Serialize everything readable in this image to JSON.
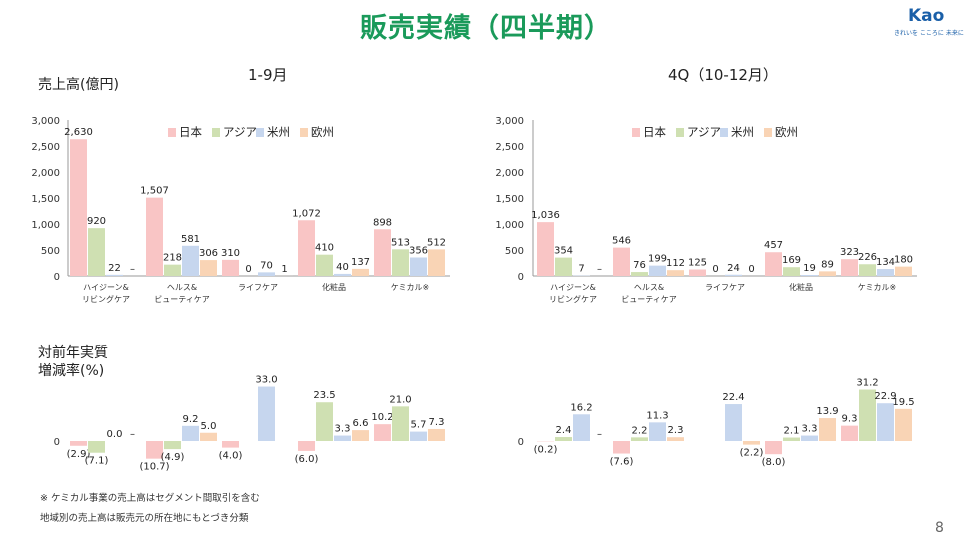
{
  "header": {
    "title": "販売実績（四半期）",
    "logo_text": "Kao",
    "logo_tagline": "きれいを こころに 未来に",
    "page_number": "8"
  },
  "labels": {
    "sales_unit": "売上高(億円)",
    "growth_label_line1": "対前年実質",
    "growth_label_line2": "増減率(%)"
  },
  "panels": {
    "left_title": "1-9月",
    "right_title": "4Q（10-12月）"
  },
  "footnotes": {
    "note1": "※ ケミカル事業の売上高はセグメント間取引を含む",
    "note2": "地域別の売上高は販売元の所在地にもとづき分類"
  },
  "colors": {
    "japan": "#f9c5c5",
    "asia": "#cfe0b2",
    "americas": "#c6d6ee",
    "europe": "#f9d4b5",
    "title": "#1a9a5a"
  },
  "chart_data": [
    {
      "id": "sales-1-9",
      "type": "bar",
      "title": "1-9月",
      "ylabel": "売上高(億円)",
      "ylim": [
        0,
        3000
      ],
      "yticks": [
        "0",
        "500",
        "1,000",
        "1,500",
        "2,000",
        "2,500",
        "3,000"
      ],
      "categories": [
        [
          "ハイジーン&",
          "リビングケア"
        ],
        [
          "ヘルス&",
          "ビューティケア"
        ],
        [
          "ライフケア"
        ],
        [
          "化粧品"
        ],
        [
          "ケミカル※"
        ]
      ],
      "legend": [
        "日本",
        "アジア",
        "米州",
        "欧州"
      ],
      "legend_position": "top-right",
      "series": [
        {
          "name": "日本",
          "values": [
            2630,
            1507,
            310,
            1072,
            898
          ],
          "labels": [
            "2,630",
            "1,507",
            "310",
            "1,072",
            "898"
          ]
        },
        {
          "name": "アジア",
          "values": [
            920,
            218,
            0,
            410,
            513
          ],
          "labels": [
            "920",
            "218",
            "0",
            "410",
            "513"
          ]
        },
        {
          "name": "米州",
          "values": [
            22,
            581,
            70,
            40,
            356
          ],
          "labels": [
            "22",
            "581",
            "70",
            "40",
            "356"
          ]
        },
        {
          "name": "欧州",
          "values": [
            null,
            306,
            1,
            137,
            512
          ],
          "labels": [
            "–",
            "306",
            "1",
            "137",
            "512"
          ]
        }
      ]
    },
    {
      "id": "sales-4q",
      "type": "bar",
      "title": "4Q（10-12月）",
      "ylim": [
        0,
        3000
      ],
      "yticks": [
        "0",
        "500",
        "1,000",
        "1,500",
        "2,000",
        "2,500",
        "3,000"
      ],
      "categories": [
        [
          "ハイジーン&",
          "リビングケア"
        ],
        [
          "ヘルス&",
          "ビューティケア"
        ],
        [
          "ライフケア"
        ],
        [
          "化粧品"
        ],
        [
          "ケミカル※"
        ]
      ],
      "legend": [
        "日本",
        "アジア",
        "米州",
        "欧州"
      ],
      "legend_position": "top-right",
      "series": [
        {
          "name": "日本",
          "values": [
            1036,
            546,
            125,
            457,
            323
          ],
          "labels": [
            "1,036",
            "546",
            "125",
            "457",
            "323"
          ]
        },
        {
          "name": "アジア",
          "values": [
            354,
            76,
            0,
            169,
            226
          ],
          "labels": [
            "354",
            "76",
            "0",
            "169",
            "226"
          ]
        },
        {
          "name": "米州",
          "values": [
            7,
            199,
            24,
            19,
            134
          ],
          "labels": [
            "7",
            "199",
            "24",
            "19",
            "134"
          ]
        },
        {
          "name": "欧州",
          "values": [
            null,
            112,
            0,
            89,
            180
          ],
          "labels": [
            "–",
            "112",
            "0",
            "89",
            "180"
          ]
        }
      ]
    },
    {
      "id": "growth-1-9",
      "type": "bar",
      "ylabel": "対前年実質増減率(%)",
      "yticks": [
        "0"
      ],
      "categories": [
        "ハイジーン&リビングケア",
        "ヘルス&ビューティケア",
        "ライフケア",
        "化粧品",
        "ケミカル"
      ],
      "series": [
        {
          "name": "日本",
          "values": [
            -2.9,
            -10.7,
            -4.0,
            -6.0,
            10.2
          ],
          "labels": [
            "(2.9)",
            "(10.7)",
            "(4.0)",
            "(6.0)",
            "10.2"
          ]
        },
        {
          "name": "アジア",
          "values": [
            -7.1,
            -4.9,
            null,
            23.5,
            21.0
          ],
          "labels": [
            "(7.1)",
            "(4.9)",
            "",
            "23.5",
            "21.0"
          ]
        },
        {
          "name": "米州",
          "values": [
            0.0,
            9.2,
            33.0,
            3.3,
            5.7
          ],
          "labels": [
            "0.0",
            "9.2",
            "33.0",
            "3.3",
            "5.7"
          ]
        },
        {
          "name": "欧州",
          "values": [
            null,
            5.0,
            null,
            6.6,
            7.3
          ],
          "labels": [
            "–",
            "5.0",
            "",
            "6.6",
            "7.3"
          ]
        }
      ]
    },
    {
      "id": "growth-4q",
      "type": "bar",
      "yticks": [
        "0"
      ],
      "categories": [
        "ハイジーン&リビングケア",
        "ヘルス&ビューティケア",
        "ライフケア",
        "化粧品",
        "ケミカル"
      ],
      "series": [
        {
          "name": "日本",
          "values": [
            -0.2,
            -7.6,
            null,
            -8.0,
            9.3
          ],
          "labels": [
            "(0.2)",
            "(7.6)",
            "",
            "(8.0)",
            "9.3"
          ]
        },
        {
          "name": "アジア",
          "values": [
            2.4,
            2.2,
            null,
            2.1,
            31.2
          ],
          "labels": [
            "2.4",
            "2.2",
            "",
            "2.1",
            "31.2"
          ]
        },
        {
          "name": "米州",
          "values": [
            16.2,
            11.3,
            22.4,
            3.3,
            22.9
          ],
          "labels": [
            "16.2",
            "11.3",
            "22.4",
            "3.3",
            "22.9"
          ]
        },
        {
          "name": "欧州",
          "values": [
            null,
            2.3,
            -2.2,
            13.9,
            19.5
          ],
          "labels": [
            "–",
            "2.3",
            "(2.2)",
            "13.9",
            "19.5"
          ]
        }
      ]
    }
  ]
}
